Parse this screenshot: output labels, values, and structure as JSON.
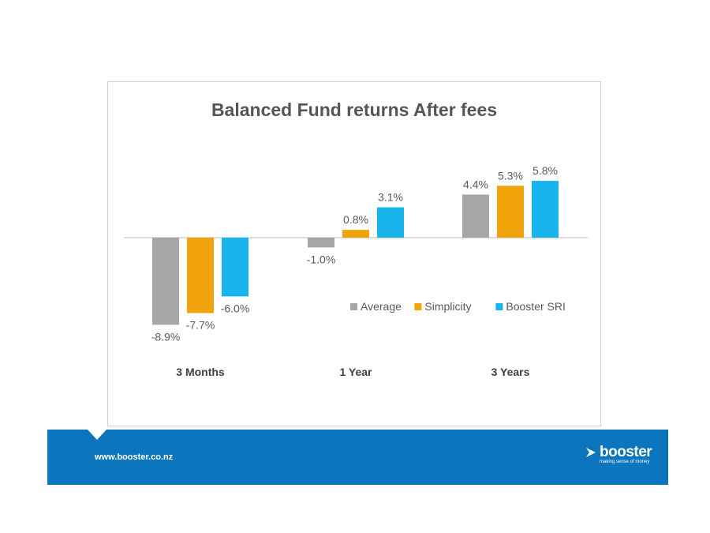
{
  "chart_data": {
    "type": "bar",
    "title": "Balanced Fund returns After fees",
    "categories": [
      "3 Months",
      "1 Year",
      "3 Years"
    ],
    "series": [
      {
        "name": "Average",
        "color": "#a6a6a6",
        "values": [
          -8.9,
          -1.0,
          4.4
        ],
        "labels": [
          "-8.9%",
          "-1.0%",
          "4.4%"
        ]
      },
      {
        "name": "Simplicity",
        "color": "#f0a30a",
        "values": [
          -7.7,
          0.8,
          5.3
        ],
        "labels": [
          "-7.7%",
          "0.8%",
          "5.3%"
        ]
      },
      {
        "name": "Booster SRI",
        "color": "#18b4ec",
        "values": [
          -6.0,
          3.1,
          5.8
        ],
        "labels": [
          "-6.0%",
          "3.1%",
          "5.8%"
        ]
      }
    ],
    "ylim": [
      -10,
      7
    ],
    "grid": false,
    "legend": "bottom-right"
  },
  "footer": {
    "url": "www.booster.co.nz",
    "brand_name": "booster",
    "brand_tagline": "making sense of money"
  }
}
